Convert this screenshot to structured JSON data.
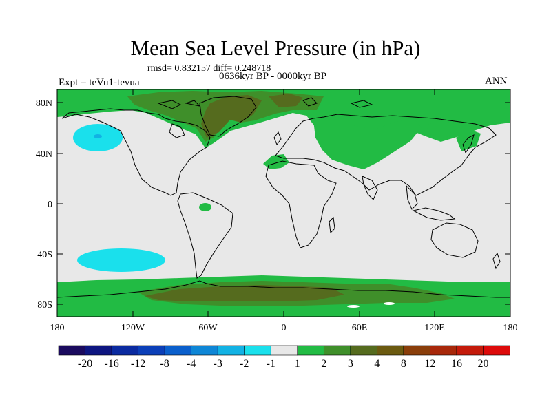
{
  "header": {
    "title": "Mean Sea Level Pressure (in hPa)",
    "stats": "rmsd= 0.832157 diff= 0.248718",
    "period": "0636kyr BP - 0000kyr BP",
    "experiment": "Expt = teVu1-tevua",
    "season": "ANN"
  },
  "axes": {
    "lat_labels": [
      "80N",
      "40N",
      "0",
      "40S",
      "80S"
    ],
    "lon_labels": [
      "180",
      "120W",
      "60W",
      "0",
      "60E",
      "120E",
      "180"
    ]
  },
  "legend": {
    "labels": [
      "-20",
      "-16",
      "-12",
      "-8",
      "-4",
      "-3",
      "-2",
      "-1",
      "1",
      "2",
      "3",
      "4",
      "8",
      "12",
      "16",
      "20"
    ],
    "colors": [
      "#1a0a5e",
      "#0d1580",
      "#0a2aa0",
      "#0b3fb8",
      "#0a5fcc",
      "#0e86d6",
      "#12b2e4",
      "#1ae0ec",
      "#e8e8e8",
      "#22bb44",
      "#3f8f2a",
      "#556b1e",
      "#6b5a10",
      "#8a3e0a",
      "#a8280a",
      "#c41a0a",
      "#dd0a0a"
    ]
  },
  "map_colors": {
    "neutral": "#e8e8e8",
    "pos1": "#22bb44",
    "pos2": "#3f8f2a",
    "pos3": "#556b1e",
    "neg1": "#1ae0ec",
    "neg2": "#12b2e4",
    "coast": "#000000"
  }
}
